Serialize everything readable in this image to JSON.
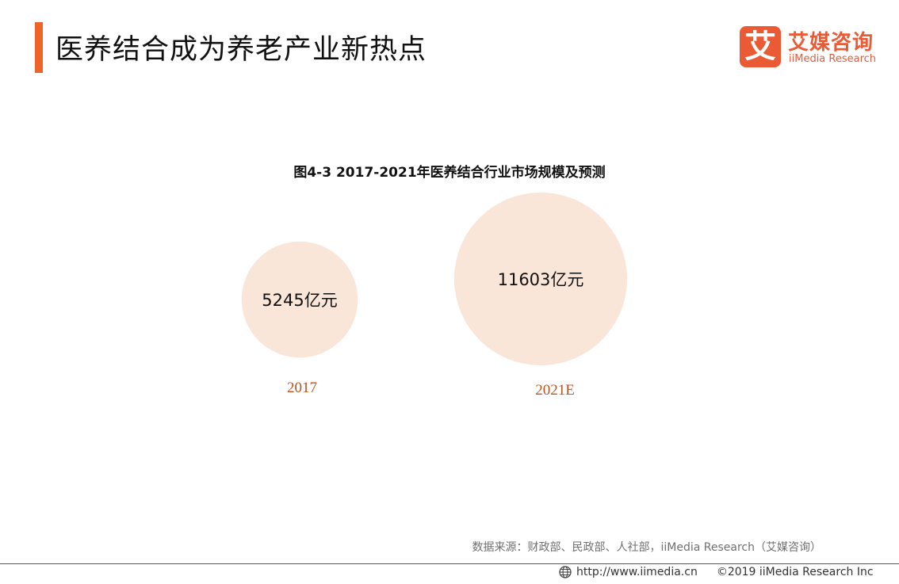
{
  "header": {
    "title": "医养结合成为养老产业新热点"
  },
  "logo": {
    "icon_char": "艾",
    "name_cn": "艾媒咨询",
    "name_en": "iiMedia Research"
  },
  "chart_data": {
    "type": "bubble",
    "title": "图4-3 2017-2021年医养结合行业市场规模及预测",
    "unit": "亿元",
    "categories": [
      "2017",
      "2021E"
    ],
    "values": [
      5245,
      11603
    ],
    "value_labels": [
      "5245亿元",
      "11603亿元"
    ],
    "colors": {
      "bubble": "#fae5d9",
      "category_label": "#c0531b"
    }
  },
  "source": "数据来源：财政部、民政部、人社部，iiMedia Research（艾媒咨询）",
  "footer": {
    "url": "http://www.iimedia.cn",
    "copyright": "©2019 iiMedia Research Inc"
  }
}
